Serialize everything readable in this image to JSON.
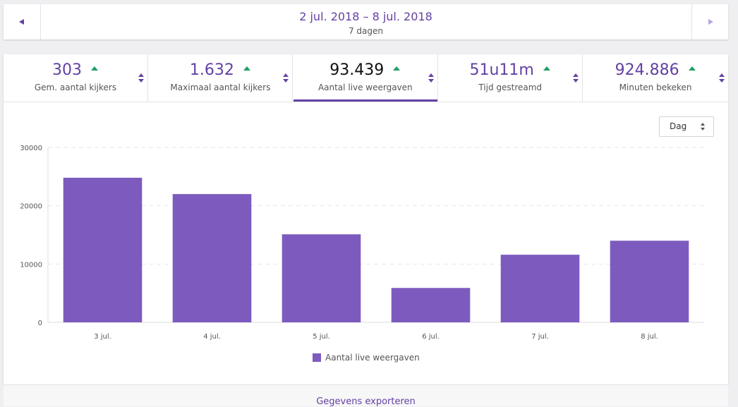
{
  "header": {
    "title": "2 jul. 2018 – 8 jul. 2018",
    "subtitle": "7 dagen"
  },
  "stats": [
    {
      "value": "303",
      "label": "Gem. aantal kijkers"
    },
    {
      "value": "1.632",
      "label": "Maximaal aantal kijkers"
    },
    {
      "value": "93.439",
      "label": "Aantal live weergaven"
    },
    {
      "value": "51u11m",
      "label": "Tijd gestreamd"
    },
    {
      "value": "924.886",
      "label": "Minuten bekeken"
    }
  ],
  "selected_stat": 2,
  "dropdown": "Dag",
  "chart_data": {
    "type": "bar",
    "categories": [
      "3 jul.",
      "4 jul.",
      "5 jul.",
      "6 jul.",
      "7 jul.",
      "8 jul."
    ],
    "series": [
      {
        "name": "Aantal live weergaven",
        "color": "#7d5bbe",
        "values": [
          24800,
          22000,
          15100,
          5900,
          11600,
          14000
        ]
      }
    ],
    "ylim": [
      0,
      30000
    ],
    "yticks": [
      0,
      10000,
      20000,
      30000
    ],
    "grid": true
  },
  "footer": {
    "link": "Gegevens exporteren"
  }
}
